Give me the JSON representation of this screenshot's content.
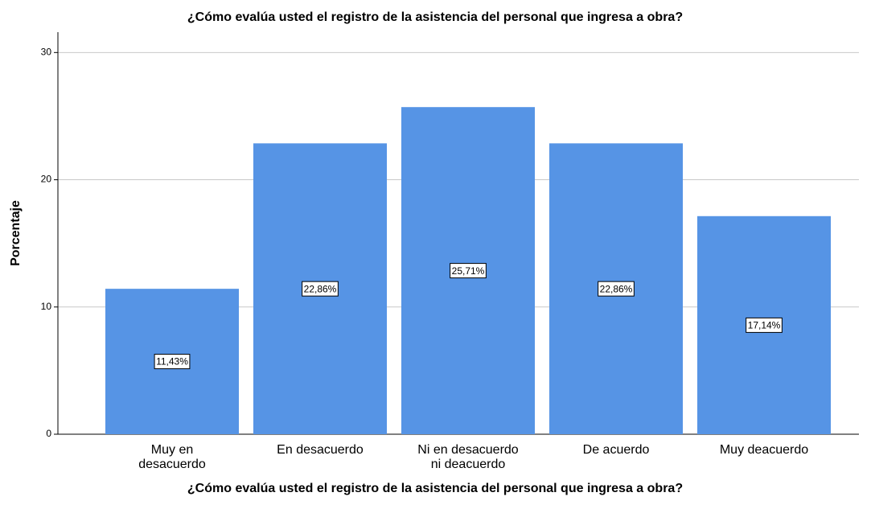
{
  "chart_data": {
    "type": "bar",
    "title": "¿Cómo evalúa usted el registro de la asistencia del personal que ingresa a obra?",
    "x_label": "¿Cómo evalúa usted el registro de la asistencia del personal que ingresa a obra?",
    "y_label": "Porcentaje",
    "categories": [
      "Muy en desacuerdo",
      "En desacuerdo",
      "Ni en desacuerdo ni deacuerdo",
      "De acuerdo",
      "Muy deacuerdo"
    ],
    "values": [
      11.43,
      22.86,
      25.71,
      22.86,
      17.14
    ],
    "value_labels": [
      "11,43%",
      "22,86%",
      "25,71%",
      "22,86%",
      "17,14%"
    ],
    "color": "#5694e5",
    "ylim": [
      0,
      31.6
    ],
    "yticks": [
      0,
      10,
      20,
      30
    ],
    "grid": true
  }
}
